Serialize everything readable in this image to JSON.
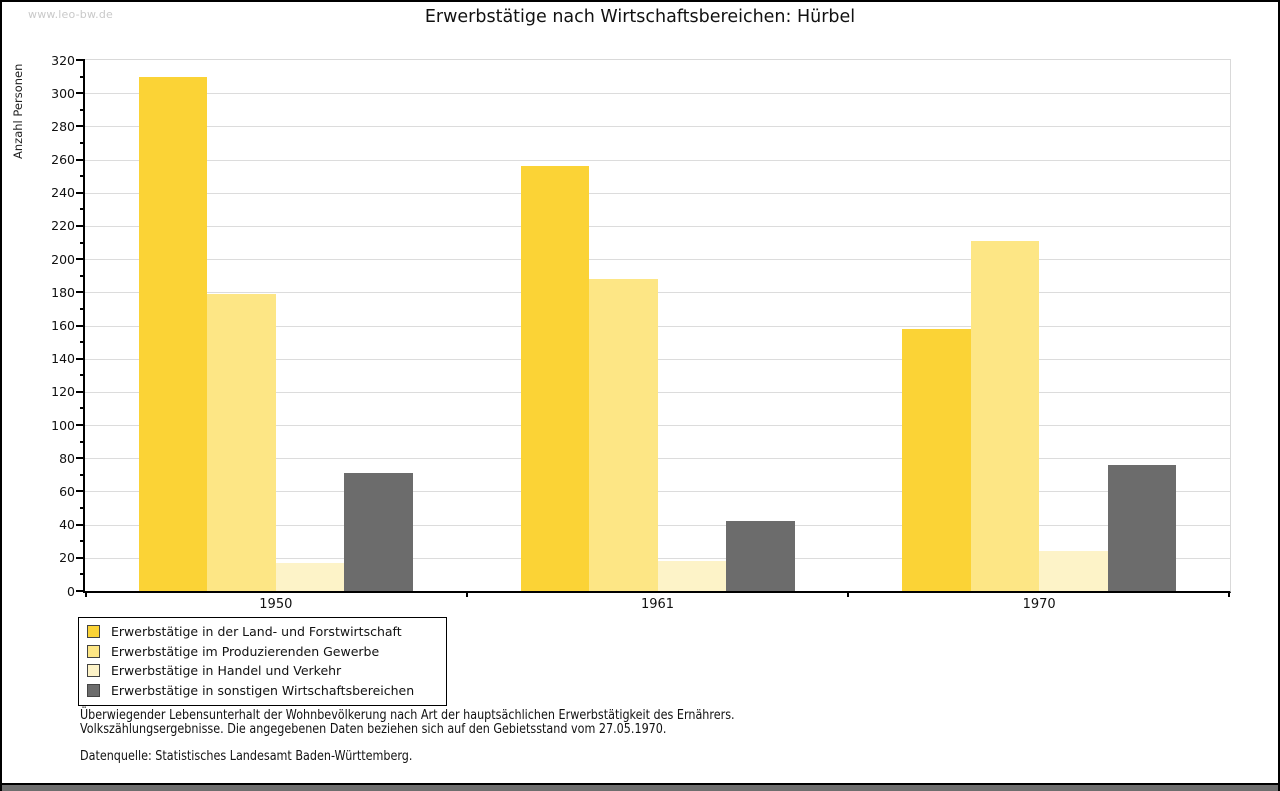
{
  "watermark": "www.leo-bw.de",
  "title": "Erwerbstätige nach Wirtschaftsbereichen: Hürbel",
  "chart_data": {
    "type": "bar",
    "title": "Erwerbstätige nach Wirtschaftsbereichen: Hürbel",
    "xlabel": "",
    "ylabel": "Anzahl Personen",
    "categories": [
      "1950",
      "1961",
      "1970"
    ],
    "series": [
      {
        "name": "Erwerbstätige in der Land- und Forstwirtschaft",
        "color": "#fbd336",
        "values": [
          310,
          256,
          158
        ]
      },
      {
        "name": "Erwerbstätige im Produzierenden Gewerbe",
        "color": "#fde685",
        "values": [
          179,
          188,
          211
        ]
      },
      {
        "name": "Erwerbstätige in Handel und Verkehr",
        "color": "#fdf3c8",
        "values": [
          17,
          18,
          24
        ]
      },
      {
        "name": "Erwerbstätige in sonstigen Wirtschaftsbereichen",
        "color": "#6c6c6c",
        "values": [
          71,
          42,
          76
        ]
      }
    ],
    "ylim": [
      0,
      320
    ],
    "ytick_step": 20,
    "yminor_step": 10,
    "grid": "horizontal",
    "gridline_color": "#dcdcdc",
    "legend_position": "bottom-left"
  },
  "footer": {
    "line1": "Überwiegender Lebensunterhalt der Wohnbevölkerung nach Art der hauptsächlichen Erwerbstätigkeit des Ernährers.",
    "line2": "Volkszählungsergebnisse. Die angegebenen Daten beziehen sich auf den Gebietsstand vom 27.05.1970.",
    "source": "Datenquelle: Statistisches Landesamt Baden-Württemberg."
  }
}
